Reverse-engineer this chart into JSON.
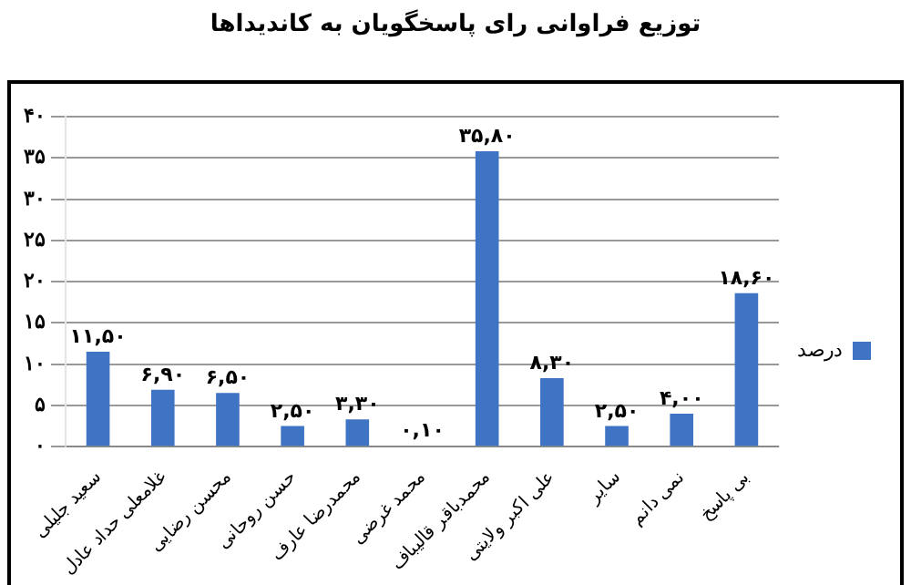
{
  "chart_data": {
    "type": "bar",
    "title": "توزیع فراوانی رای پاسخگویان به کاندیداها",
    "categories": [
      "سعید جلیلی",
      "غلامعلی حداد عادل",
      "محسن رضایی",
      "حسن روحانی",
      "محمدرضا عارف",
      "محمد غرضی",
      "محمدباقر قالیباف",
      "علی اکبر ولایتی",
      "سایر",
      "نمی دانم",
      "بی پاسخ"
    ],
    "series": [
      {
        "name": "درصد",
        "color": "#3f74c4",
        "values": [
          11.5,
          6.9,
          6.5,
          2.5,
          3.3,
          0.1,
          35.8,
          8.3,
          2.5,
          4.0,
          18.6
        ],
        "value_labels": [
          "۱۱,۵۰",
          "۶,۹۰",
          "۶,۵۰",
          "۲,۵۰",
          "۳,۳۰",
          "۰,۱۰",
          "۳۵,۸۰",
          "۸,۳۰",
          "۲,۵۰",
          "۴,۰۰",
          "۱۸,۶۰"
        ]
      }
    ],
    "ylim": [
      0,
      40
    ],
    "yticks": [
      {
        "value": 0,
        "label": "۰"
      },
      {
        "value": 5,
        "label": "۵"
      },
      {
        "value": 10,
        "label": "۱۰"
      },
      {
        "value": 15,
        "label": "۱۵"
      },
      {
        "value": 20,
        "label": "۲۰"
      },
      {
        "value": 25,
        "label": "۲۵"
      },
      {
        "value": 30,
        "label": "۳۰"
      },
      {
        "value": 35,
        "label": "۳۵"
      },
      {
        "value": 40,
        "label": "۴۰"
      }
    ],
    "grid": "y",
    "legend": "right"
  }
}
